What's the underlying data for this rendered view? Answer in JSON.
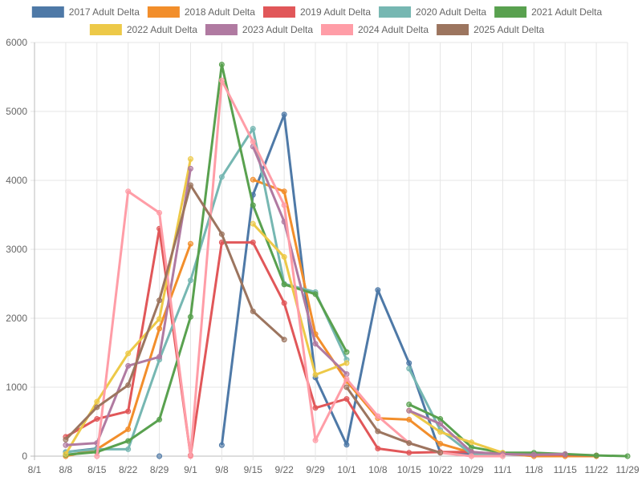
{
  "chart_data": {
    "type": "line",
    "title": "",
    "xlabel": "",
    "ylabel": "",
    "ylim": [
      0,
      6000
    ],
    "yticks": [
      "0",
      "1000",
      "2000",
      "3000",
      "4000",
      "5000",
      "6000"
    ],
    "grid": true,
    "legend_position": "top",
    "categories": [
      "8/1",
      "8/8",
      "8/15",
      "8/22",
      "8/29",
      "9/1",
      "9/8",
      "9/15",
      "9/22",
      "9/29",
      "10/1",
      "10/8",
      "10/15",
      "10/22",
      "10/29",
      "11/1",
      "11/8",
      "11/15",
      "11/22",
      "11/29"
    ],
    "series": [
      {
        "name": "2017 Adult Delta",
        "color": "#4e79a7",
        "values": [
          null,
          60,
          110,
          null,
          0,
          null,
          160,
          3790,
          4955,
          1140,
          165,
          2410,
          1350,
          50,
          30,
          null,
          null,
          null,
          null,
          null
        ]
      },
      {
        "name": "2018 Adult Delta",
        "color": "#f28e2b",
        "values": [
          null,
          0,
          100,
          390,
          1850,
          3080,
          null,
          4010,
          3840,
          1770,
          1090,
          550,
          530,
          180,
          50,
          40,
          0,
          0,
          0,
          null
        ]
      },
      {
        "name": "2019 Adult Delta",
        "color": "#e15759",
        "values": [
          null,
          280,
          540,
          650,
          3300,
          10,
          3100,
          3100,
          2220,
          700,
          830,
          110,
          50,
          60,
          60,
          30,
          20,
          20,
          10,
          null
        ]
      },
      {
        "name": "2020 Adult Delta",
        "color": "#76b7b2",
        "values": [
          null,
          60,
          100,
          100,
          1400,
          2550,
          4050,
          4750,
          2500,
          2380,
          1400,
          null,
          1270,
          380,
          30,
          20,
          null,
          null,
          null,
          null
        ]
      },
      {
        "name": "2021 Adult Delta",
        "color": "#59a14f",
        "values": [
          null,
          20,
          60,
          220,
          530,
          2020,
          5680,
          3640,
          2490,
          2350,
          1510,
          null,
          750,
          540,
          130,
          50,
          50,
          30,
          10,
          0
        ]
      },
      {
        "name": "2022 Adult Delta",
        "color": "#edc948",
        "values": [
          null,
          30,
          790,
          1490,
          1990,
          4310,
          null,
          3370,
          2890,
          1180,
          1350,
          null,
          660,
          350,
          200,
          50,
          null,
          null,
          null,
          null
        ]
      },
      {
        "name": "2023 Adult Delta",
        "color": "#b07aa1",
        "values": [
          null,
          160,
          190,
          1310,
          1440,
          4170,
          null,
          4490,
          3400,
          1630,
          1190,
          null,
          660,
          470,
          60,
          30,
          20,
          30,
          null,
          null
        ]
      },
      {
        "name": "2024 Adult Delta",
        "color": "#ff9da7",
        "values": [
          null,
          null,
          0,
          3840,
          3530,
          0,
          5450,
          4560,
          3640,
          230,
          1120,
          580,
          190,
          50,
          0,
          0,
          null,
          null,
          null,
          null
        ]
      },
      {
        "name": "2025 Adult Delta",
        "color": "#9c755f",
        "values": [
          null,
          240,
          710,
          1030,
          2260,
          3930,
          3220,
          2100,
          1690,
          null,
          1000,
          360,
          190,
          50,
          null,
          null,
          null,
          null,
          null,
          null
        ]
      }
    ]
  }
}
